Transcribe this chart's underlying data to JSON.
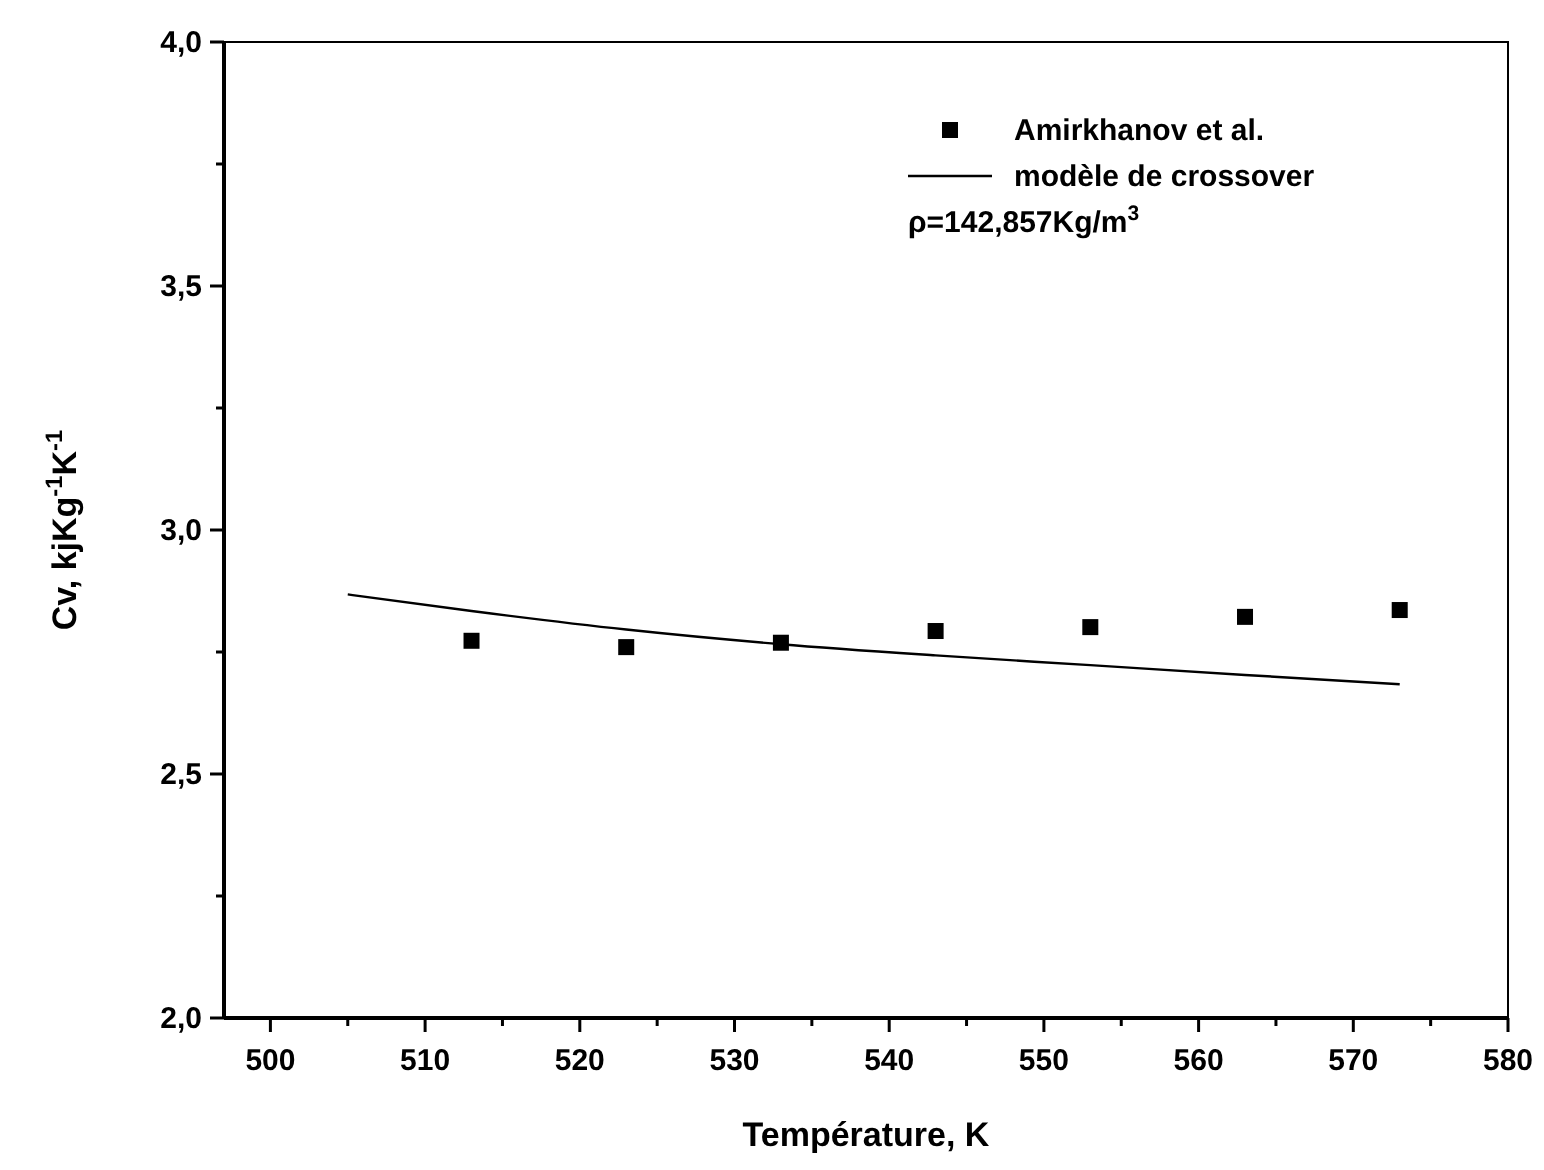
{
  "chart_data": {
    "type": "scatter",
    "xlabel": "Température, K",
    "ylabel": "Cv, kjKg$^{-1}$K$^{-1}$",
    "xlim": [
      497,
      580
    ],
    "xticks": [
      500,
      510,
      520,
      530,
      540,
      550,
      560,
      570,
      580
    ],
    "ylim": [
      2,
      4
    ],
    "yticks": [
      {
        "value": 2,
        "label": "2,0"
      },
      {
        "value": 2.5,
        "label": "2,5"
      },
      {
        "value": 3,
        "label": "3,0"
      },
      {
        "value": 3.5,
        "label": "3,5"
      },
      {
        "value": 4,
        "label": "4,0"
      }
    ],
    "legend": "top right",
    "annotations": [
      "ρ=142,857Kg/m$^{3}$"
    ],
    "series": [
      {
        "name": "Amirkhanov et al.",
        "marker": "square",
        "color": "#000000",
        "x": [
          513,
          523,
          533,
          543,
          553,
          563,
          573
        ],
        "values": [
          2.773,
          2.76,
          2.769,
          2.793,
          2.801,
          2.822,
          2.836
        ]
      },
      {
        "name": "modèle de crossover",
        "type": "line",
        "color": "#000000",
        "x": [
          505,
          513,
          523,
          533,
          543,
          553,
          563,
          573
        ],
        "values": [
          2.868,
          2.834,
          2.796,
          2.766,
          2.743,
          2.723,
          2.703,
          2.684
        ]
      }
    ]
  }
}
